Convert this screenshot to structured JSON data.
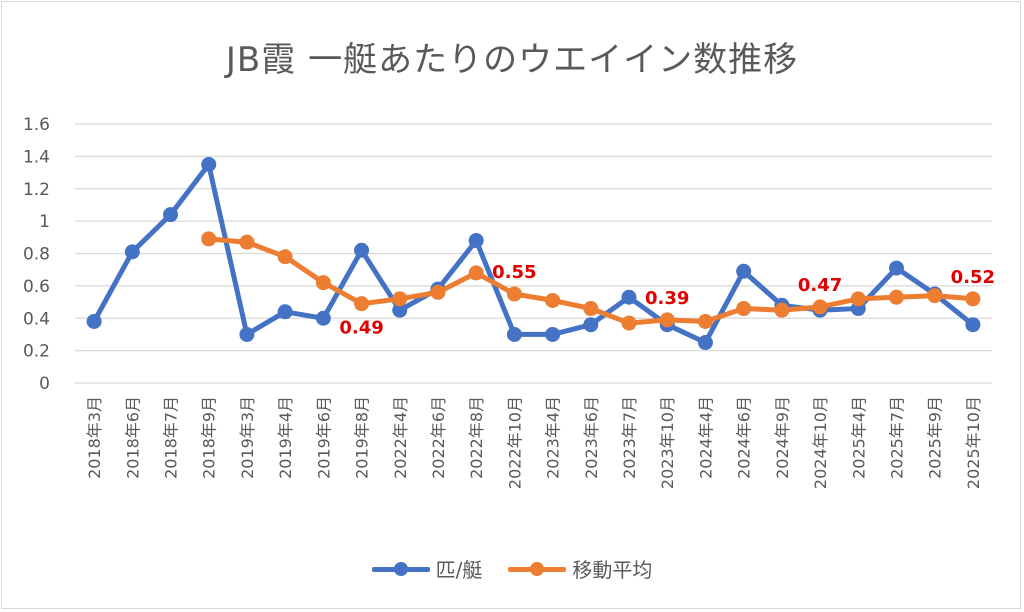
{
  "chart_data": {
    "type": "line",
    "title": "JB霞 一艇あたりのウエイイン数推移",
    "xlabel": "",
    "ylabel": "",
    "ylim": [
      0,
      1.6
    ],
    "yticks": [
      0,
      0.2,
      0.4,
      0.6,
      0.8,
      1,
      1.2,
      1.4,
      1.6
    ],
    "ytick_labels": [
      "0",
      "0.2",
      "0.4",
      "0.6",
      "0.8",
      "1",
      "1.2",
      "1.4",
      "1.6"
    ],
    "grid": true,
    "legend_position": "bottom",
    "categories": [
      "2018年3月",
      "2018年6月",
      "2018年7月",
      "2018年9月",
      "2019年3月",
      "2019年4月",
      "2019年6月",
      "2019年8月",
      "2022年4月",
      "2022年6月",
      "2022年8月",
      "2022年10月",
      "2023年4月",
      "2023年6月",
      "2023年7月",
      "2023年10月",
      "2024年4月",
      "2024年6月",
      "2024年9月",
      "2024年10月",
      "2025年4月",
      "2025年7月",
      "2025年9月",
      "2025年10月"
    ],
    "series": [
      {
        "name": "匹/艇",
        "color": "#4472c4",
        "values": [
          0.38,
          0.81,
          1.04,
          1.35,
          0.3,
          0.44,
          0.4,
          0.82,
          0.45,
          0.58,
          0.88,
          0.3,
          0.3,
          0.36,
          0.53,
          0.36,
          0.25,
          0.69,
          0.48,
          0.45,
          0.46,
          0.71,
          0.55,
          0.36
        ]
      },
      {
        "name": "移動平均",
        "color": "#ed7d31",
        "values": [
          null,
          null,
          null,
          0.89,
          0.87,
          0.78,
          0.62,
          0.49,
          0.52,
          0.56,
          0.68,
          0.55,
          0.51,
          0.46,
          0.37,
          0.39,
          0.38,
          0.46,
          0.45,
          0.47,
          0.52,
          0.53,
          0.54,
          0.52
        ]
      }
    ],
    "annotations": [
      {
        "series": "移動平均",
        "category": "2019年8月",
        "text": "0.49",
        "placement": "below",
        "color": "#e00000"
      },
      {
        "series": "移動平均",
        "category": "2022年10月",
        "text": "0.55",
        "placement": "above",
        "color": "#e00000"
      },
      {
        "series": "移動平均",
        "category": "2023年10月",
        "text": "0.39",
        "placement": "above",
        "color": "#e00000"
      },
      {
        "series": "移動平均",
        "category": "2024年10月",
        "text": "0.47",
        "placement": "above",
        "color": "#e00000"
      },
      {
        "series": "移動平均",
        "category": "2025年10月",
        "text": "0.52",
        "placement": "above",
        "color": "#e00000"
      }
    ]
  },
  "legend": {
    "items": [
      {
        "label": "匹/艇",
        "color": "#4472c4"
      },
      {
        "label": "移動平均",
        "color": "#ed7d31"
      }
    ]
  }
}
